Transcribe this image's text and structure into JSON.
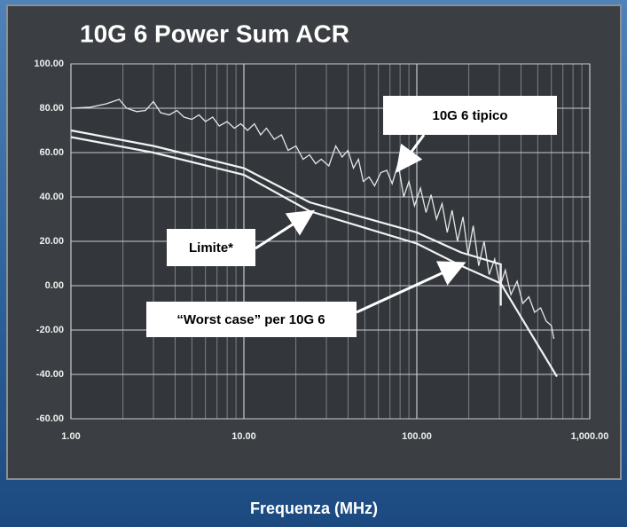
{
  "chart_data": {
    "type": "line",
    "title": "10G 6 Power Sum ACR",
    "x_label": "Frequenza (MHz)",
    "xlog": true,
    "xlim": [
      1,
      1000
    ],
    "xticks": [
      {
        "value": 1,
        "label": "1.00"
      },
      {
        "value": 10,
        "label": "10.00"
      },
      {
        "value": 100,
        "label": "100.00"
      },
      {
        "value": 1000,
        "label": "1,000.00"
      }
    ],
    "ylim": [
      -60,
      100
    ],
    "yticks": [
      {
        "value": 100,
        "label": "100.00"
      },
      {
        "value": 80,
        "label": "80.00"
      },
      {
        "value": 60,
        "label": "60.00"
      },
      {
        "value": 40,
        "label": "40.00"
      },
      {
        "value": 20,
        "label": "20.00"
      },
      {
        "value": 0,
        "label": "0.00"
      },
      {
        "value": -20,
        "label": "-20.00"
      },
      {
        "value": -40,
        "label": "-40.00"
      },
      {
        "value": -60,
        "label": "-60.00"
      }
    ],
    "grid": true,
    "series": [
      {
        "name": "10G 6 tipico",
        "color": "#e6e6e6",
        "x": [
          1,
          1.3,
          1.6,
          1.9,
          2.1,
          2.4,
          2.7,
          3.0,
          3.3,
          3.7,
          4.1,
          4.5,
          5,
          5.5,
          6,
          6.6,
          7.2,
          8,
          8.8,
          9.6,
          10.5,
          11.5,
          12.5,
          13.5,
          15,
          16.5,
          18,
          20,
          22,
          24,
          26,
          28,
          31,
          34,
          37,
          40,
          43,
          46,
          49,
          53,
          57,
          62,
          67,
          72,
          78,
          84,
          90,
          97,
          105,
          113,
          121,
          130,
          140,
          150,
          160,
          172,
          185,
          198,
          212,
          228,
          245,
          262,
          282,
          303,
          325,
          350,
          380,
          410,
          445,
          480,
          520,
          560,
          600,
          620
        ],
        "values": [
          80,
          80.5,
          82,
          84,
          80,
          78.5,
          79,
          83,
          78,
          77,
          79,
          76,
          75,
          77,
          74,
          76,
          72,
          74,
          71,
          73,
          70,
          73,
          68,
          71,
          66,
          68,
          61,
          63,
          57,
          59,
          55,
          57,
          54,
          63,
          58,
          61,
          53,
          57,
          47,
          49,
          45,
          51,
          52,
          46,
          55,
          40,
          47,
          36,
          44,
          33,
          41,
          30,
          37,
          24,
          34,
          20,
          31,
          14,
          27,
          9,
          20,
          5,
          12,
          0,
          7,
          -4,
          2,
          -8,
          -5,
          -12,
          -10,
          -16,
          -18,
          -24
        ]
      },
      {
        "name": "Limite*",
        "color": "#f2f2f2",
        "x": [
          1,
          3,
          10,
          24,
          100,
          180,
          306,
          646
        ],
        "values": [
          67,
          60,
          50,
          33.6,
          19,
          9,
          1,
          -41
        ]
      },
      {
        "name": "“Worst case” per 10G 6",
        "color": "#f2f2f2",
        "x": [
          1,
          3,
          10,
          24,
          100,
          180,
          306,
          306
        ],
        "values": [
          70,
          63,
          53,
          37.6,
          24,
          15,
          9.6,
          -9
        ]
      }
    ]
  }
}
